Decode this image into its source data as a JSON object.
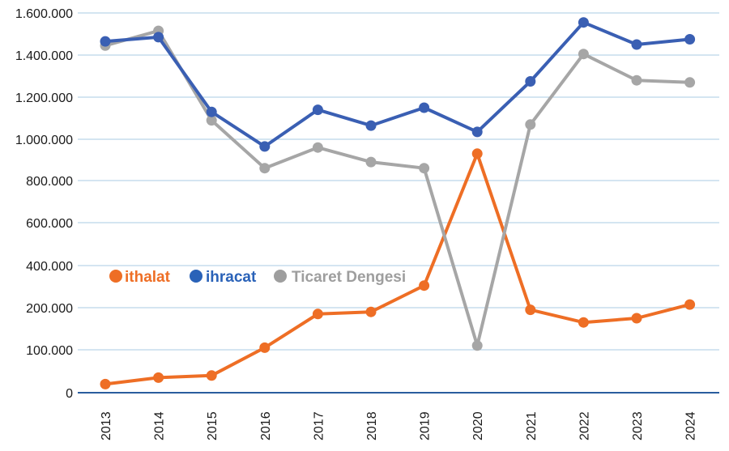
{
  "chart_data": {
    "type": "line",
    "title": "",
    "xlabel": "",
    "ylabel": "",
    "categories": [
      "2013",
      "2014",
      "2015",
      "2016",
      "2017",
      "2018",
      "2019",
      "2020",
      "2021",
      "2022",
      "2023",
      "2024"
    ],
    "y_ticks": [
      {
        "value": 0,
        "label": "0"
      },
      {
        "value": 100000,
        "label": "100.000"
      },
      {
        "value": 200000,
        "label": "200.000"
      },
      {
        "value": 400000,
        "label": "400.000"
      },
      {
        "value": 600000,
        "label": "600.000"
      },
      {
        "value": 800000,
        "label": "800.000"
      },
      {
        "value": 1000000,
        "label": "1.000.000"
      },
      {
        "value": 1200000,
        "label": "1.200.000"
      },
      {
        "value": 1400000,
        "label": "1.400.000"
      },
      {
        "value": 1600000,
        "label": "1.600.000"
      }
    ],
    "ylim": [
      0,
      1600000
    ],
    "grid": true,
    "legend_position": "left-middle",
    "series": [
      {
        "name": "ithalat",
        "color": "#ee6e25",
        "values": [
          20000,
          35000,
          40000,
          105000,
          185000,
          190000,
          305000,
          930000,
          195000,
          165000,
          175000,
          215000
        ]
      },
      {
        "name": "ihracat",
        "color": "#3a5fb3",
        "values": [
          1465000,
          1485000,
          1130000,
          965000,
          1140000,
          1065000,
          1150000,
          1035000,
          1275000,
          1555000,
          1450000,
          1475000
        ]
      },
      {
        "name": "Ticaret Dengesi",
        "color": "#a6a6a6",
        "values": [
          1445000,
          1515000,
          1090000,
          860000,
          960000,
          890000,
          860000,
          110000,
          1070000,
          1405000,
          1280000,
          1270000
        ]
      }
    ],
    "legend_colors": {
      "ithalat": "#ee6e25",
      "ihracat": "#2a62b8",
      "Ticaret Dengesi": "#9e9e9e"
    }
  }
}
